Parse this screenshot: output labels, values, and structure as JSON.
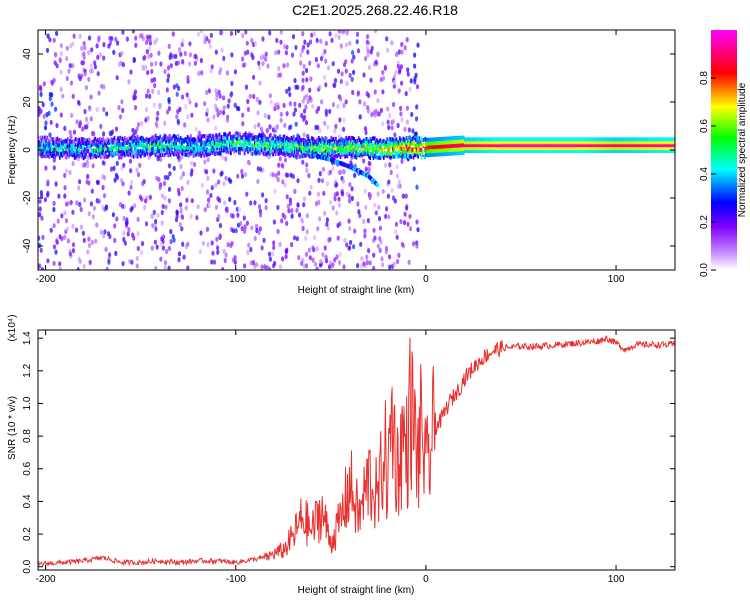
{
  "page": {
    "title": "C2E1.2025.268.22.46.R18"
  },
  "chart_data": [
    {
      "type": "heatmap",
      "title": "C2E1.2025.268.22.46.R18",
      "xlabel": "Height of straight line (km)",
      "ylabel": "Frequency (Hz)",
      "xlim": [
        -204,
        131
      ],
      "ylim": [
        -50,
        50
      ],
      "xticks": [
        -200,
        -100,
        0,
        100
      ],
      "xtick_labels": [
        "-200",
        "-100",
        "0",
        "100"
      ],
      "yticks": [
        -40,
        -20,
        0,
        20,
        40
      ],
      "ytick_labels": [
        "-40",
        "-20",
        "0",
        "20",
        "40"
      ],
      "colorbar": {
        "label": "Normalized spectral amplitude",
        "range": [
          0.0,
          1.0
        ],
        "ticks": [
          0.0,
          0.2,
          0.4,
          0.6,
          0.8
        ],
        "tick_labels": [
          "0.0",
          "0.2",
          "0.4",
          "0.6",
          "0.8"
        ],
        "colors": [
          "#ffffff",
          "#8000ff",
          "#0000ff",
          "#00ffff",
          "#00ff00",
          "#ffff00",
          "#ff0000",
          "#ff00ff"
        ]
      },
      "signal_track": {
        "x": [
          -200,
          -180,
          -160,
          -140,
          -120,
          -100,
          -80,
          -60,
          -40,
          -20,
          -10,
          0,
          20,
          40,
          60,
          80,
          100,
          131
        ],
        "frequency_hz": [
          1,
          0.5,
          1,
          2,
          1.5,
          3,
          2,
          1,
          1,
          0.5,
          1,
          1,
          2,
          2,
          2,
          2,
          2,
          2
        ],
        "amplitude": [
          0.45,
          0.4,
          0.45,
          0.5,
          0.45,
          0.5,
          0.5,
          0.55,
          0.6,
          0.7,
          0.75,
          0.8,
          0.9,
          0.95,
          0.95,
          0.95,
          0.9,
          0.95
        ]
      },
      "secondary_track": {
        "x": [
          -60,
          -50,
          -40,
          -30,
          -25
        ],
        "frequency_hz": [
          -2,
          -4,
          -7,
          -11,
          -15
        ]
      }
    },
    {
      "type": "line",
      "xlabel": "Height of straight line (km)",
      "ylabel": "SNR (10 * v/v)",
      "y_scale_label": "(x10⁴)",
      "xlim": [
        -204,
        131
      ],
      "ylim": [
        -0.02,
        1.45
      ],
      "xticks": [
        -200,
        -100,
        0,
        100
      ],
      "xtick_labels": [
        "-200",
        "-100",
        "0",
        "100"
      ],
      "yticks": [
        0.0,
        0.2,
        0.4,
        0.6,
        0.8,
        1.0,
        1.2,
        1.4
      ],
      "ytick_labels": [
        "0.0",
        "0.2",
        "0.4",
        "0.6",
        "0.8",
        "1.0",
        "1.2",
        "1.4"
      ],
      "color": "#e8312f",
      "series": [
        {
          "name": "SNR",
          "x": [
            -204,
            -190,
            -180,
            -170,
            -160,
            -150,
            -140,
            -130,
            -120,
            -110,
            -100,
            -90,
            -85,
            -80,
            -75,
            -70,
            -65,
            -60,
            -55,
            -50,
            -45,
            -40,
            -35,
            -30,
            -25,
            -22,
            -20,
            -18,
            -15,
            -12,
            -10,
            -8,
            -6,
            -4,
            -2,
            0,
            2,
            5,
            8,
            10,
            12,
            15,
            18,
            20,
            25,
            30,
            35,
            40,
            50,
            60,
            70,
            80,
            90,
            95,
            100,
            105,
            110,
            120,
            131
          ],
          "y": [
            0.01,
            0.02,
            0.03,
            0.05,
            0.02,
            0.02,
            0.03,
            0.02,
            0.03,
            0.03,
            0.02,
            0.04,
            0.05,
            0.08,
            0.1,
            0.18,
            0.3,
            0.22,
            0.35,
            0.15,
            0.28,
            0.5,
            0.3,
            0.55,
            0.4,
            0.75,
            0.5,
            0.95,
            0.6,
            0.8,
            0.7,
            1.0,
            0.8,
            0.65,
            0.9,
            0.55,
            0.7,
            0.85,
            0.9,
            0.95,
            1.0,
            1.05,
            1.1,
            1.15,
            1.22,
            1.28,
            1.32,
            1.34,
            1.35,
            1.35,
            1.36,
            1.37,
            1.38,
            1.4,
            1.37,
            1.33,
            1.36,
            1.36,
            1.36
          ]
        }
      ]
    }
  ]
}
